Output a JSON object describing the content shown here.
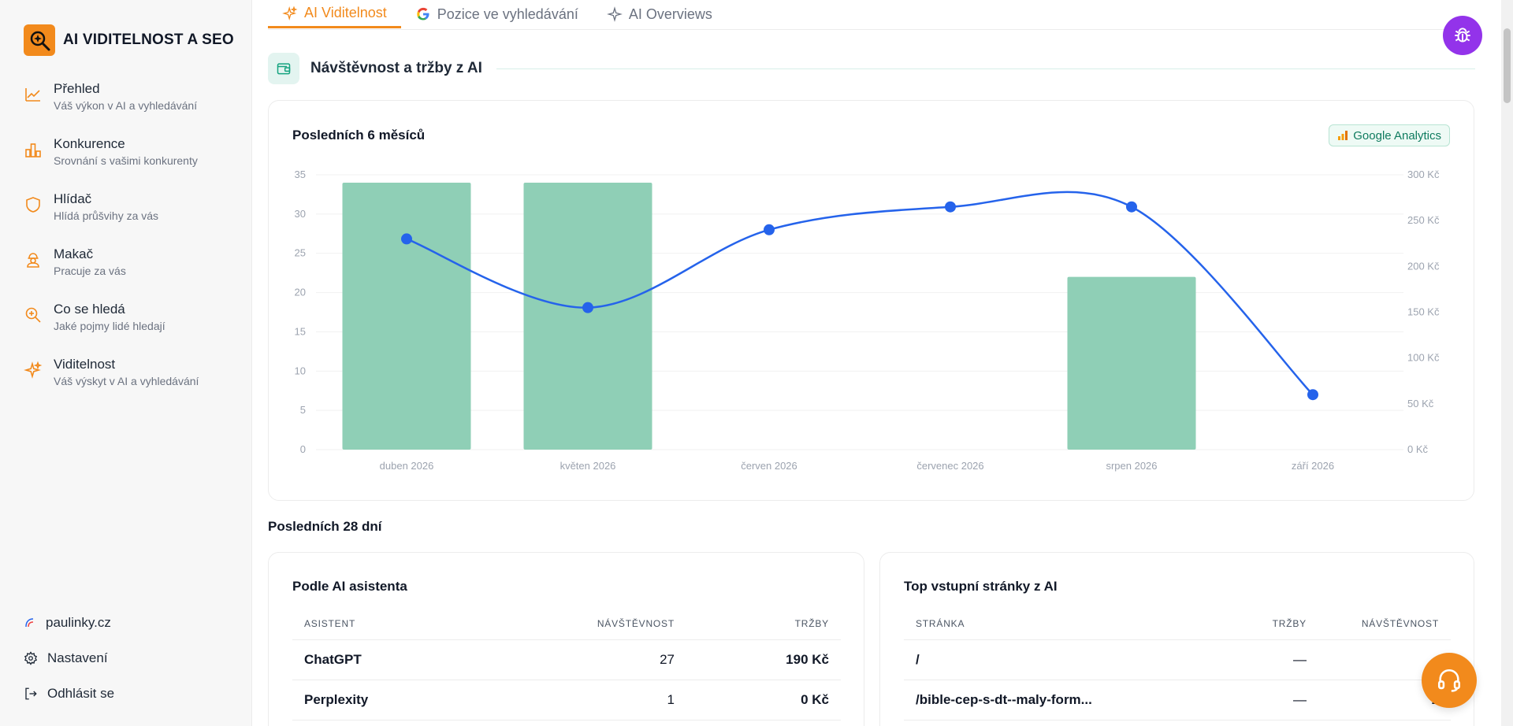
{
  "brand": {
    "name": "AI VIDITELNOST A SEO"
  },
  "sidebar": {
    "items": [
      {
        "icon": "chart-line-icon",
        "title": "Přehled",
        "subtitle": "Váš výkon v AI a vyhledávání"
      },
      {
        "icon": "bar-chart-icon",
        "title": "Konkurence",
        "subtitle": "Srovnání s vašimi konkurenty"
      },
      {
        "icon": "shield-icon",
        "title": "Hlídač",
        "subtitle": "Hlídá průšvihy za vás"
      },
      {
        "icon": "worker-icon",
        "title": "Makač",
        "subtitle": "Pracuje za vás"
      },
      {
        "icon": "search-icon",
        "title": "Co se hledá",
        "subtitle": "Jaké pojmy lidé hledají"
      },
      {
        "icon": "sparkle-icon",
        "title": "Viditelnost",
        "subtitle": "Váš výskyt v AI a vyhledávání"
      }
    ],
    "site": "paulinky.cz",
    "settings": "Nastavení",
    "logout": "Odhlásit se"
  },
  "tabs": [
    {
      "label": "AI Viditelnost",
      "active": true
    },
    {
      "label": "Pozice ve vyhledávání",
      "active": false
    },
    {
      "label": "AI Overviews",
      "active": false
    }
  ],
  "section": {
    "title": "Návštěvnost a tržby z AI"
  },
  "chart_card": {
    "title": "Posledních 6 měsíců",
    "badge": "Google Analytics"
  },
  "chart_data": {
    "type": "bar",
    "categories": [
      "duben 2026",
      "květen 2026",
      "červen 2026",
      "červenec 2026",
      "srpen 2026",
      "září 2026"
    ],
    "series": [
      {
        "type": "bar",
        "axis": "left",
        "color": "#8fcfb6",
        "values": [
          34,
          34,
          0,
          0,
          22,
          0
        ]
      },
      {
        "type": "line",
        "axis": "right",
        "color": "#2563eb",
        "values": [
          230,
          155,
          240,
          265,
          265,
          60
        ]
      }
    ],
    "y_left": {
      "range": [
        0,
        35
      ],
      "ticks": [
        "0",
        "5",
        "10",
        "15",
        "20",
        "25",
        "30",
        "35"
      ]
    },
    "y_right": {
      "range": [
        0,
        300
      ],
      "ticks": [
        "0 Kč",
        "50 Kč",
        "100 Kč",
        "150 Kč",
        "200 Kč",
        "250 Kč",
        "300 Kč"
      ]
    },
    "grid": true
  },
  "last28": {
    "heading": "Posledních 28 dní"
  },
  "assistants": {
    "title": "Podle AI asistenta",
    "headers": [
      "ASISTENT",
      "NÁVŠTĚVNOST",
      "TRŽBY"
    ],
    "rows": [
      [
        "ChatGPT",
        "27",
        "190 Kč"
      ],
      [
        "Perplexity",
        "1",
        "0 Kč"
      ]
    ]
  },
  "landing": {
    "title": "Top vstupní stránky z AI",
    "headers": [
      "STRÁNKA",
      "TRŽBY",
      "NÁVŠTĚVNOST"
    ],
    "rows": [
      [
        "/",
        "—",
        ""
      ],
      [
        "/bible-cep-s-dt--maly-form...",
        "—",
        "2"
      ]
    ]
  }
}
